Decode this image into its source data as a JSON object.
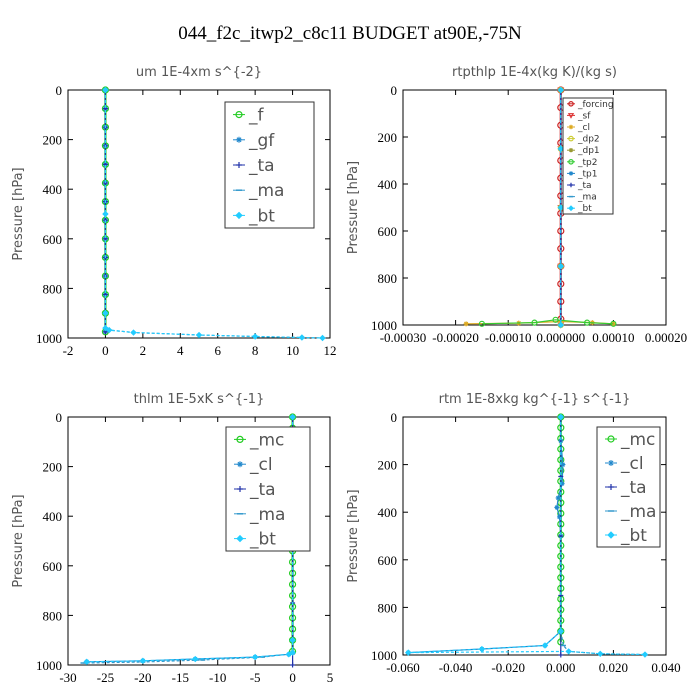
{
  "figure": {
    "title": "044_f2c_itwp2_c8c11  BUDGET at90E,-75N"
  },
  "chart_data": [
    {
      "type": "line",
      "title": "um   1E-4xm s^{-2}",
      "ylabel": "Pressure [hPa]",
      "xlim": [
        -2,
        12
      ],
      "ylim": [
        1000,
        0
      ],
      "xticks": [
        "-2",
        "0",
        "2",
        "4",
        "6",
        "8",
        "10",
        "12"
      ],
      "xtick_values": [
        -2,
        0,
        2,
        4,
        6,
        8,
        10,
        12
      ],
      "yticks": [
        "0",
        "200",
        "400",
        "600",
        "800",
        "1000"
      ],
      "ytick_values": [
        0,
        200,
        400,
        600,
        800,
        1000
      ],
      "legend_style": "big",
      "series": [
        {
          "name": "_f",
          "color": "#22cc22",
          "marker": "circle",
          "x": [
            0,
            0,
            0,
            0,
            0,
            0,
            0,
            0,
            0,
            0,
            0,
            0,
            0,
            0
          ],
          "y": [
            0,
            75,
            150,
            225,
            300,
            375,
            450,
            525,
            600,
            675,
            750,
            825,
            900,
            975
          ]
        },
        {
          "name": "_gf",
          "color": "#2288cc",
          "marker": "star",
          "x": [
            0,
            0,
            0,
            0,
            0,
            0,
            0,
            0,
            0,
            0,
            0,
            0,
            0,
            0
          ],
          "y": [
            0,
            75,
            150,
            225,
            300,
            375,
            450,
            525,
            600,
            675,
            750,
            825,
            900,
            975
          ]
        },
        {
          "name": "_ta",
          "color": "#2233aa",
          "marker": "plus",
          "x": [
            0,
            0,
            0,
            0,
            0,
            0,
            0,
            0,
            0,
            0,
            0,
            0,
            0,
            0
          ],
          "y": [
            0,
            75,
            150,
            225,
            300,
            375,
            450,
            525,
            600,
            675,
            750,
            825,
            900,
            975
          ]
        },
        {
          "name": "_ma",
          "color": "#3399cc",
          "marker": "dash",
          "x": [
            0,
            0,
            0,
            0,
            0.2,
            1.5,
            5.0,
            8.0,
            10.5,
            11.6
          ],
          "y": [
            0,
            500,
            900,
            960,
            968,
            978,
            988,
            994,
            998,
            1000
          ]
        },
        {
          "name": "_bt",
          "color": "#22ccff",
          "marker": "diamond",
          "x": [
            0,
            0,
            0,
            0,
            0.2,
            1.5,
            5.0,
            8.0,
            10.5,
            11.6
          ],
          "y": [
            0,
            500,
            900,
            960,
            968,
            978,
            988,
            994,
            998,
            1000
          ]
        }
      ]
    },
    {
      "type": "line",
      "title": "rtpthlp   1E-4x(kg K)/(kg s)",
      "ylabel": "Pressure [hPa]",
      "xlim": [
        -0.0003,
        0.0002
      ],
      "ylim": [
        1000,
        0
      ],
      "xticks": [
        "-0.00030",
        "-0.00020",
        "-0.00010",
        "0.000000",
        "0.00010",
        "0.00020"
      ],
      "xtick_values": [
        -0.0003,
        -0.0002,
        -0.0001,
        0,
        0.0001,
        0.0002
      ],
      "yticks": [
        "0",
        "200",
        "400",
        "600",
        "800",
        "1000"
      ],
      "ytick_values": [
        0,
        200,
        400,
        600,
        800,
        1000
      ],
      "legend_style": "small",
      "series": [
        {
          "name": "_forcing",
          "color": "#cc2222",
          "marker": "circle",
          "x": [
            0,
            0,
            0,
            0,
            0,
            0,
            0,
            0,
            0,
            0,
            0,
            0,
            0,
            0
          ],
          "y": [
            0,
            75,
            150,
            225,
            300,
            375,
            450,
            525,
            600,
            675,
            750,
            825,
            900,
            975
          ]
        },
        {
          "name": "_sf",
          "color": "#dd3333",
          "marker": "triangle",
          "x": [
            0,
            0,
            0,
            0,
            0
          ],
          "y": [
            0,
            250,
            500,
            750,
            1000
          ]
        },
        {
          "name": "_cl",
          "color": "#ddaa22",
          "marker": "star",
          "x": [
            -0.00018,
            -8e-05,
            0,
            6e-05,
            0.0001
          ],
          "y": [
            995,
            992,
            985,
            990,
            995
          ]
        },
        {
          "name": "_dp2",
          "color": "#cccc33",
          "marker": "circle",
          "x": [
            0,
            0,
            0,
            0,
            0
          ],
          "y": [
            0,
            250,
            500,
            750,
            1000
          ]
        },
        {
          "name": "_dp1",
          "color": "#999933",
          "marker": "star",
          "x": [
            0,
            0,
            0,
            0,
            0
          ],
          "y": [
            0,
            250,
            500,
            750,
            1000
          ]
        },
        {
          "name": "_tp2",
          "color": "#33cc33",
          "marker": "circle",
          "x": [
            -0.00015,
            -5e-05,
            -1e-05,
            5e-05,
            0.0001
          ],
          "y": [
            995,
            990,
            978,
            990,
            995
          ]
        },
        {
          "name": "_tp1",
          "color": "#2288cc",
          "marker": "star",
          "x": [
            0,
            0,
            0,
            0,
            0
          ],
          "y": [
            0,
            250,
            500,
            750,
            1000
          ]
        },
        {
          "name": "_ta",
          "color": "#2233aa",
          "marker": "plus",
          "x": [
            0,
            0,
            0,
            0,
            0
          ],
          "y": [
            0,
            250,
            500,
            750,
            1000
          ]
        },
        {
          "name": "_ma",
          "color": "#3399cc",
          "marker": "dash",
          "x": [
            0,
            0,
            0,
            0,
            0
          ],
          "y": [
            0,
            250,
            500,
            750,
            1000
          ]
        },
        {
          "name": "_bt",
          "color": "#22ccff",
          "marker": "diamond",
          "x": [
            0,
            0,
            0,
            0,
            0
          ],
          "y": [
            0,
            250,
            500,
            750,
            1000
          ]
        }
      ]
    },
    {
      "type": "line",
      "title": "thlm   1E-5xK s^{-1}",
      "ylabel": "Pressure [hPa]",
      "xlim": [
        -30,
        5
      ],
      "ylim": [
        1000,
        0
      ],
      "xticks": [
        "-30",
        "-25",
        "-20",
        "-15",
        "-10",
        "-5",
        "0",
        "5"
      ],
      "xtick_values": [
        -30,
        -25,
        -20,
        -15,
        -10,
        -5,
        0,
        5
      ],
      "yticks": [
        "0",
        "200",
        "400",
        "600",
        "800",
        "1000"
      ],
      "ytick_values": [
        0,
        200,
        400,
        600,
        800,
        1000
      ],
      "legend_style": "big",
      "series": [
        {
          "name": "_mc",
          "color": "#22cc22",
          "marker": "circle",
          "x": [
            0,
            0,
            0,
            0,
            0,
            0,
            0,
            0,
            0,
            0,
            0,
            0,
            0,
            0,
            0,
            0,
            0,
            0,
            0,
            0,
            0,
            0
          ],
          "y": [
            0,
            45,
            90,
            135,
            180,
            225,
            270,
            315,
            360,
            405,
            450,
            495,
            540,
            585,
            630,
            675,
            720,
            765,
            810,
            855,
            900,
            945
          ]
        },
        {
          "name": "_cl",
          "color": "#2288cc",
          "marker": "star",
          "x": [
            0,
            0,
            0,
            0,
            -0.5,
            -5,
            -13,
            -20,
            -27.5
          ],
          "y": [
            0,
            500,
            900,
            950,
            957,
            968,
            976,
            983,
            987
          ]
        },
        {
          "name": "_ta",
          "color": "#2233aa",
          "marker": "plus",
          "x": [
            0,
            0,
            0,
            0,
            0
          ],
          "y": [
            0,
            250,
            500,
            750,
            1000
          ]
        },
        {
          "name": "_ma",
          "color": "#3399cc",
          "marker": "dash",
          "x": [
            0,
            0,
            0,
            0,
            -4,
            -12,
            -20,
            -28
          ],
          "y": [
            0,
            500,
            900,
            955,
            968,
            980,
            988,
            992
          ]
        },
        {
          "name": "_bt",
          "color": "#22ccff",
          "marker": "diamond",
          "x": [
            0,
            0,
            0,
            0,
            -0.5,
            -5,
            -13,
            -20,
            -27.5
          ],
          "y": [
            0,
            500,
            900,
            950,
            957,
            968,
            976,
            983,
            987
          ]
        }
      ]
    },
    {
      "type": "line",
      "title": "rtm   1E-8xkg kg^{-1} s^{-1}",
      "ylabel": "Pressure [hPa]",
      "xlim": [
        -0.06,
        0.04
      ],
      "ylim": [
        1000,
        0
      ],
      "xticks": [
        "-0.060",
        "-0.040",
        "-0.020",
        "0.000",
        "0.020",
        "0.040"
      ],
      "xtick_values": [
        -0.06,
        -0.04,
        -0.02,
        0,
        0.02,
        0.04
      ],
      "yticks": [
        "0",
        "200",
        "400",
        "600",
        "800",
        "1000"
      ],
      "ytick_values": [
        0,
        200,
        400,
        600,
        800,
        1000
      ],
      "legend_style": "big",
      "series": [
        {
          "name": "_mc",
          "color": "#22cc22",
          "marker": "circle",
          "x": [
            0,
            0,
            0,
            0,
            0,
            0,
            0,
            0,
            0,
            0,
            0,
            0,
            0,
            0,
            0,
            0,
            0,
            0,
            0,
            0,
            0,
            0
          ],
          "y": [
            0,
            45,
            90,
            135,
            180,
            225,
            270,
            315,
            360,
            405,
            450,
            495,
            540,
            585,
            630,
            675,
            720,
            765,
            810,
            855,
            900,
            945
          ]
        },
        {
          "name": "_cl",
          "color": "#2288cc",
          "marker": "star",
          "x": [
            0,
            0,
            0.0008,
            0.0005,
            -0.001,
            -0.0015,
            -0.0005,
            0,
            0,
            -0.006,
            -0.03,
            -0.058
          ],
          "y": [
            0,
            100,
            200,
            280,
            340,
            380,
            420,
            500,
            900,
            960,
            975,
            990
          ]
        },
        {
          "name": "_ta",
          "color": "#2233aa",
          "marker": "plus",
          "x": [
            0,
            0,
            0,
            0,
            0
          ],
          "y": [
            0,
            250,
            500,
            750,
            1000
          ]
        },
        {
          "name": "_ma",
          "color": "#3399cc",
          "marker": "dash",
          "x": [
            0,
            0,
            0.001,
            0.003,
            0.015,
            0.032
          ],
          "y": [
            0,
            900,
            960,
            985,
            995,
            998
          ]
        },
        {
          "name": "_bt",
          "color": "#22ccff",
          "marker": "diamond",
          "x": [
            0,
            0,
            -0.006,
            -0.03,
            -0.058,
            0.003,
            0.015,
            0.032
          ],
          "y": [
            0,
            900,
            960,
            975,
            990,
            985,
            995,
            998
          ]
        }
      ]
    }
  ]
}
